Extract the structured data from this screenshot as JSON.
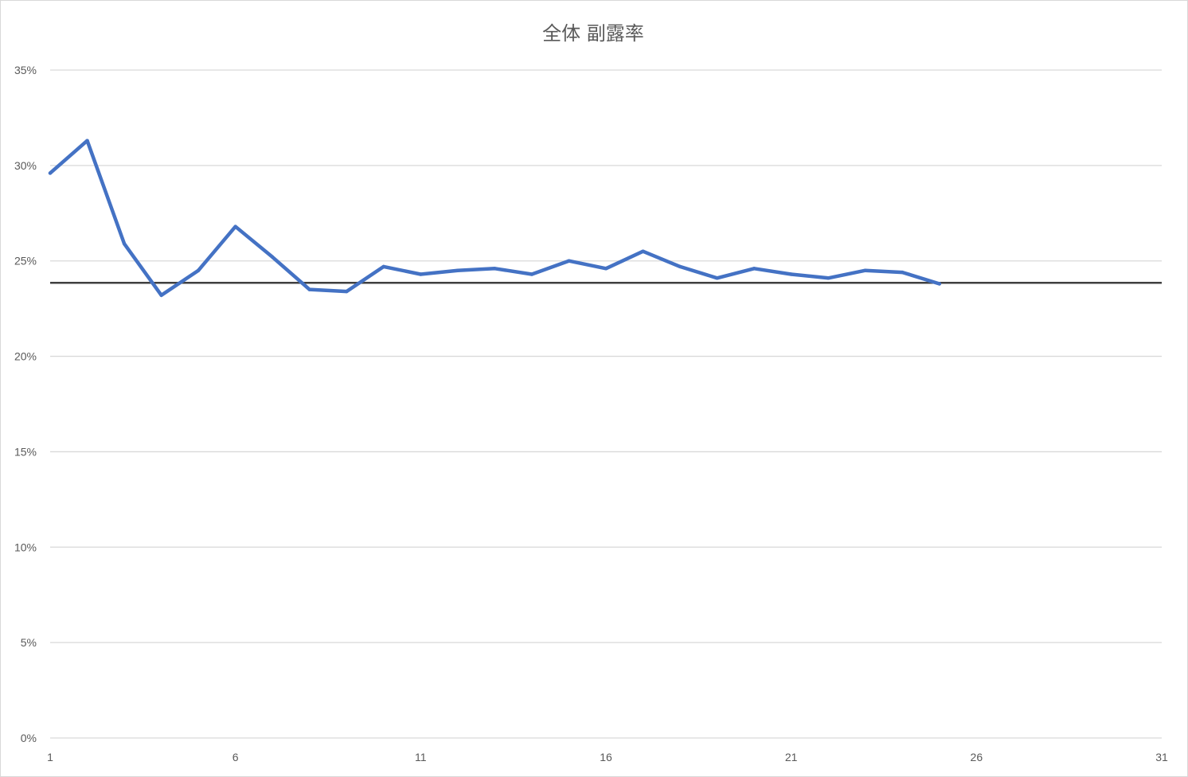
{
  "chart_data": {
    "type": "line",
    "title": "全体 副露率",
    "xlabel": "",
    "ylabel": "",
    "xlim": [
      1,
      31
    ],
    "ylim": [
      0,
      0.35
    ],
    "x_ticks": [
      "1",
      "6",
      "11",
      "16",
      "21",
      "26",
      "31"
    ],
    "y_ticks": [
      "0%",
      "5%",
      "10%",
      "15%",
      "20%",
      "25%",
      "30%",
      "35%"
    ],
    "grid": "horizontal",
    "legend": "none",
    "series": [
      {
        "color": "#4472c4",
        "x": [
          1,
          2,
          3,
          4,
          5,
          6,
          7,
          8,
          9,
          10,
          11,
          12,
          13,
          14,
          15,
          16,
          17,
          18,
          19,
          20,
          21,
          22,
          23,
          24,
          25
        ],
        "values": [
          0.296,
          0.313,
          0.259,
          0.232,
          0.245,
          0.268,
          0.252,
          0.235,
          0.234,
          0.247,
          0.243,
          0.245,
          0.246,
          0.243,
          0.25,
          0.246,
          0.255,
          0.247,
          0.241,
          0.246,
          0.243,
          0.241,
          0.245,
          0.244,
          0.238
        ]
      }
    ],
    "reference_line": {
      "value": 0.2385,
      "color": "#404040"
    }
  }
}
